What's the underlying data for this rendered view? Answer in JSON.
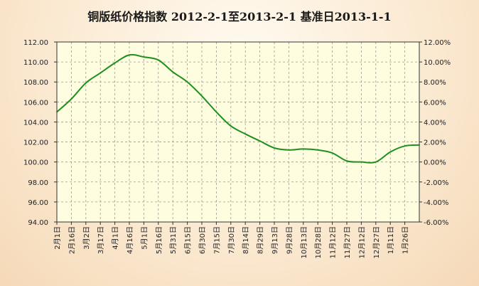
{
  "chart_data": {
    "type": "line",
    "title": "铜版纸价格指数 2012-2-1至2013-2-1 基准日2013-1-1",
    "line_color": "#1f8f1f",
    "plot_background": "#fffde0",
    "grid": true,
    "left_axis": {
      "ylim": [
        94,
        112
      ],
      "ticks": [
        "94.00",
        "96.00",
        "98.00",
        "100.00",
        "102.00",
        "104.00",
        "106.00",
        "108.00",
        "110.00",
        "112.00"
      ]
    },
    "right_axis": {
      "ylim": [
        -6,
        12
      ],
      "ticks": [
        "-6.00%",
        "-4.00%",
        "-2.00%",
        "0.00%",
        "2.00%",
        "4.00%",
        "6.00%",
        "8.00%",
        "10.00%",
        "12.00%"
      ]
    },
    "x_ticks": [
      "2月1日",
      "2月16日",
      "3月2日",
      "3月17日",
      "4月1日",
      "4月16日",
      "5月1日",
      "5月16日",
      "5月31日",
      "6月15日",
      "6月30日",
      "7月15日",
      "7月30日",
      "8月14日",
      "8月29日",
      "9月13日",
      "9月28日",
      "10月13日",
      "10月28日",
      "11月12日",
      "11月27日",
      "12月12日",
      "12月27日",
      "1月11日",
      "1月26日"
    ],
    "series": [
      {
        "x": [
          "2月1日",
          "2月16日",
          "3月2日",
          "3月17日",
          "4月1日",
          "4月16日",
          "5月1日",
          "5月16日",
          "5月31日",
          "6月15日",
          "6月30日",
          "7月15日",
          "7月30日",
          "8月14日",
          "8月29日",
          "9月13日",
          "9月28日",
          "10月13日",
          "10月28日",
          "11月12日",
          "11月27日",
          "12月12日",
          "12月27日",
          "1月11日",
          "1月26日",
          "2月1日"
        ],
        "values": [
          105.0,
          106.3,
          107.9,
          108.9,
          109.9,
          110.7,
          110.5,
          110.2,
          109.0,
          108.0,
          106.6,
          105.0,
          103.6,
          102.8,
          102.1,
          101.4,
          101.2,
          101.3,
          101.2,
          100.9,
          100.1,
          100.0,
          100.0,
          101.0,
          101.6,
          101.7
        ]
      }
    ]
  }
}
